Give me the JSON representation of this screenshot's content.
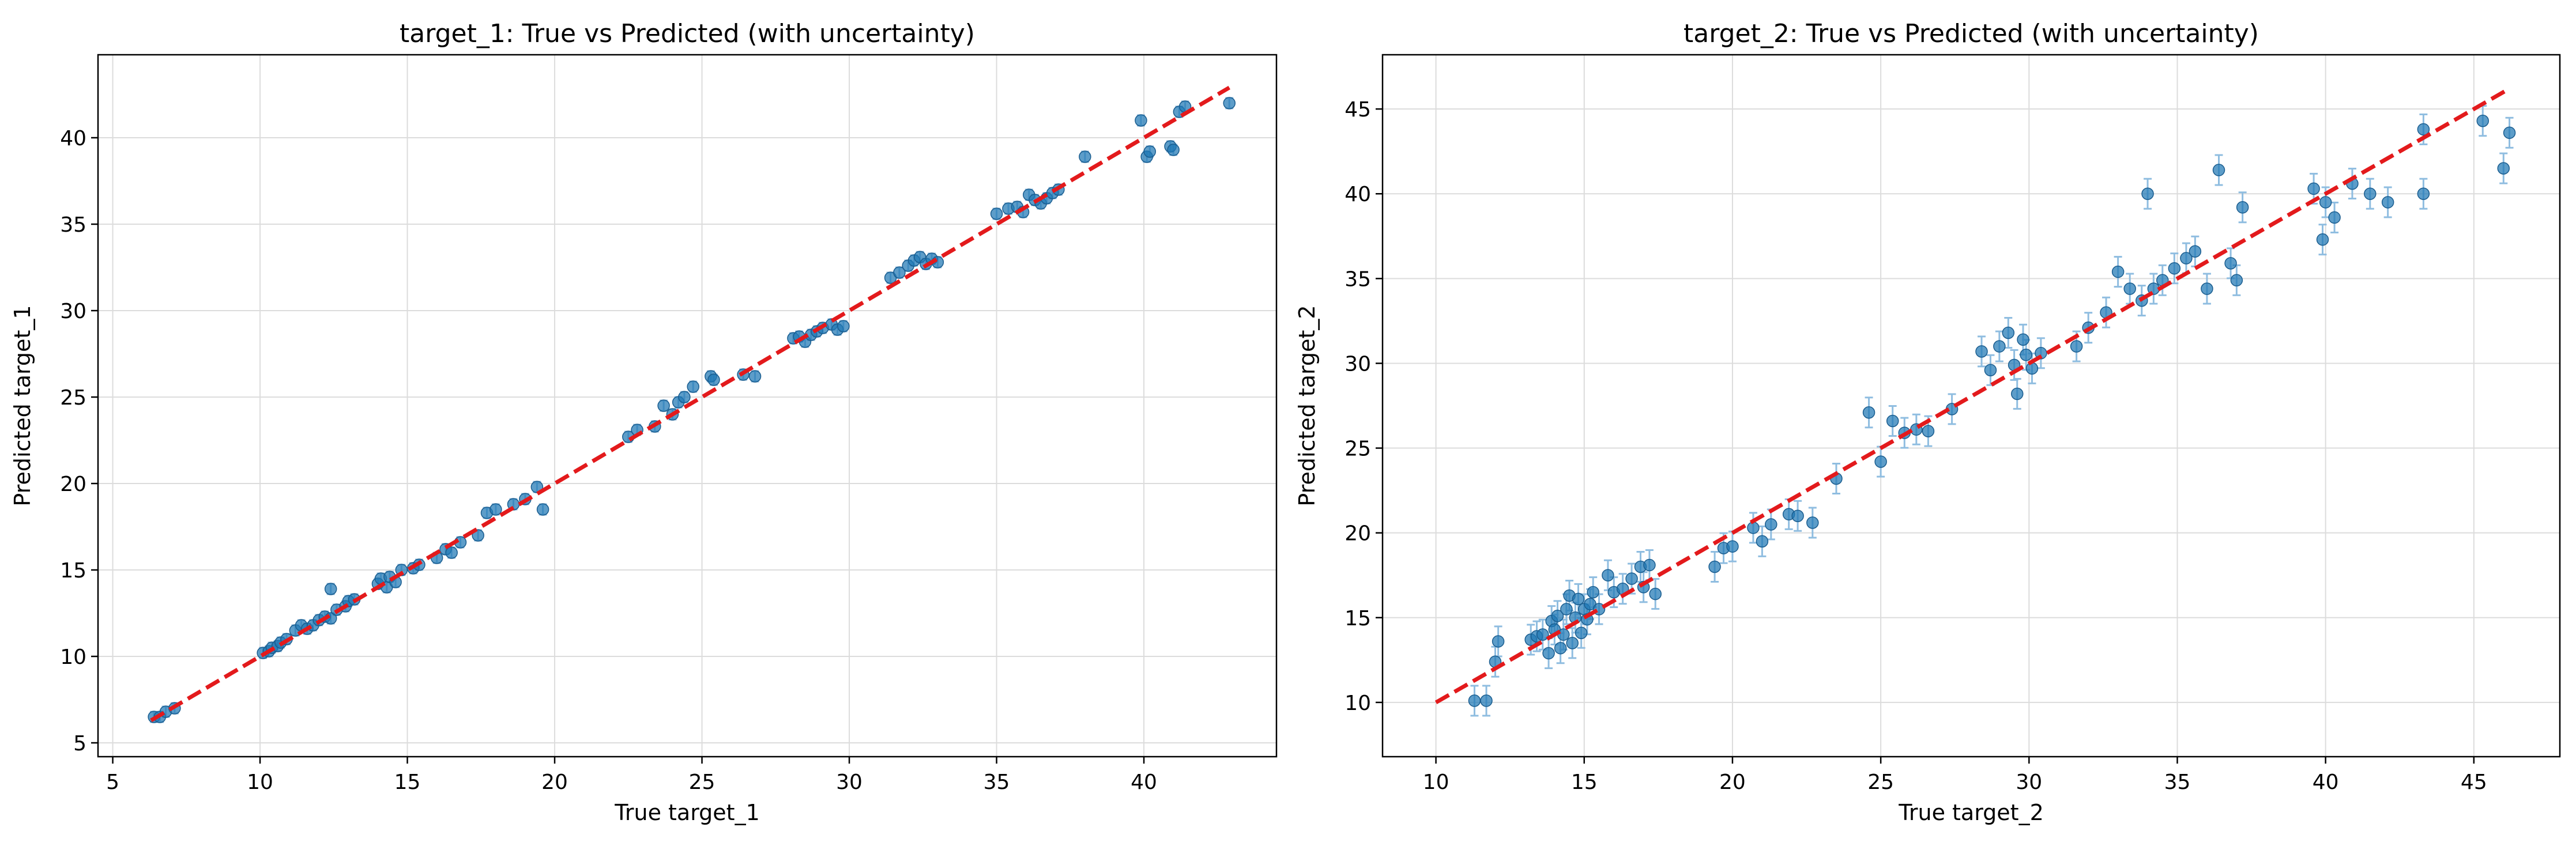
{
  "chart_data": [
    {
      "type": "scatter",
      "title": "target_1: True vs Predicted (with uncertainty)",
      "xlabel": "True target_1",
      "ylabel": "Predicted target_1",
      "xlim": [
        4.5,
        44.5
      ],
      "ylim": [
        4.2,
        44.8
      ],
      "xticks": [
        5,
        10,
        15,
        20,
        25,
        30,
        35,
        40
      ],
      "yticks": [
        5,
        10,
        15,
        20,
        25,
        30,
        35,
        40
      ],
      "grid": true,
      "reference_line": {
        "x": [
          6.3,
          42.9
        ],
        "y": [
          6.3,
          42.9
        ],
        "color": "#e31a1c",
        "style": "dashed"
      },
      "point_color": "#1f77b4",
      "series": [
        {
          "x": [
            6.4,
            6.6,
            6.8,
            7.1,
            10.1,
            10.3,
            10.4,
            10.6,
            10.7,
            10.9,
            11.2,
            11.4,
            11.6,
            11.8,
            12.0,
            12.2,
            12.4,
            12.4,
            12.6,
            12.9,
            13.0,
            13.2,
            14.0,
            14.1,
            14.3,
            14.4,
            14.6,
            14.8,
            15.2,
            15.4,
            16.0,
            16.3,
            16.5,
            16.8,
            17.4,
            17.7,
            18.0,
            18.6,
            19.0,
            19.4,
            19.6,
            22.5,
            22.8,
            23.4,
            23.7,
            24.0,
            24.2,
            24.4,
            24.7,
            25.3,
            25.4,
            26.4,
            26.8,
            28.1,
            28.3,
            28.5,
            28.7,
            28.9,
            29.1,
            29.4,
            29.6,
            29.8,
            31.4,
            31.7,
            32.0,
            32.2,
            32.4,
            32.6,
            32.8,
            33.0,
            35.0,
            35.4,
            35.7,
            35.9,
            36.1,
            36.3,
            36.5,
            36.7,
            36.9,
            37.1,
            38.0,
            39.9,
            40.1,
            40.2,
            40.9,
            41.0,
            41.2,
            41.4,
            42.9
          ],
          "y": [
            6.5,
            6.5,
            6.8,
            7.0,
            10.2,
            10.3,
            10.5,
            10.6,
            10.8,
            11.0,
            11.5,
            11.8,
            11.6,
            11.8,
            12.1,
            12.3,
            12.2,
            13.9,
            12.7,
            12.9,
            13.2,
            13.3,
            14.2,
            14.5,
            14.0,
            14.6,
            14.3,
            15.0,
            15.1,
            15.3,
            15.7,
            16.2,
            16.0,
            16.6,
            17.0,
            18.3,
            18.5,
            18.8,
            19.1,
            19.8,
            18.5,
            22.7,
            23.1,
            23.3,
            24.5,
            24.0,
            24.7,
            25.0,
            25.6,
            26.2,
            26.0,
            26.3,
            26.2,
            28.4,
            28.5,
            28.2,
            28.6,
            28.8,
            29.0,
            29.2,
            28.9,
            29.1,
            31.9,
            32.2,
            32.6,
            32.9,
            33.1,
            32.7,
            33.0,
            32.8,
            35.6,
            35.9,
            36.0,
            35.7,
            36.7,
            36.4,
            36.2,
            36.5,
            36.8,
            37.0,
            38.9,
            41.0,
            38.9,
            39.2,
            39.5,
            39.3,
            41.5,
            41.8,
            42.0
          ]
        }
      ]
    },
    {
      "type": "scatter",
      "title": "target_2: True vs Predicted (with uncertainty)",
      "xlabel": "True target_2",
      "ylabel": "Predicted target_2",
      "xlim": [
        8.2,
        47.9
      ],
      "ylim": [
        6.8,
        48.2
      ],
      "xticks": [
        10,
        15,
        20,
        25,
        30,
        35,
        40,
        45
      ],
      "yticks": [
        10,
        15,
        20,
        25,
        30,
        35,
        40,
        45
      ],
      "grid": true,
      "reference_line": {
        "x": [
          10.0,
          46.2
        ],
        "y": [
          10.0,
          46.2
        ],
        "color": "#e31a1c",
        "style": "dashed"
      },
      "point_color": "#1f77b4",
      "series": [
        {
          "x": [
            11.3,
            11.7,
            12.0,
            12.1,
            13.2,
            13.4,
            13.6,
            13.8,
            13.9,
            14.0,
            14.1,
            14.2,
            14.3,
            14.4,
            14.5,
            14.6,
            14.7,
            14.8,
            14.9,
            15.0,
            15.1,
            15.2,
            15.3,
            15.5,
            15.8,
            16.0,
            16.3,
            16.6,
            16.9,
            17.0,
            17.2,
            17.4,
            19.4,
            19.7,
            20.0,
            20.7,
            21.0,
            21.3,
            21.9,
            22.2,
            22.7,
            23.5,
            24.6,
            25.0,
            25.4,
            25.8,
            26.2,
            26.6,
            27.4,
            28.4,
            28.7,
            29.0,
            29.3,
            29.5,
            29.6,
            29.8,
            29.9,
            30.1,
            30.4,
            31.6,
            32.0,
            32.6,
            33.0,
            33.4,
            33.8,
            34.0,
            34.2,
            34.5,
            34.9,
            35.3,
            35.6,
            36.0,
            36.4,
            36.8,
            37.0,
            37.2,
            39.6,
            39.9,
            40.0,
            40.3,
            40.9,
            41.5,
            42.1,
            43.3,
            43.3,
            45.3,
            46.0,
            46.2
          ],
          "y": [
            10.1,
            10.1,
            12.4,
            13.6,
            13.7,
            13.9,
            14.0,
            12.9,
            14.8,
            14.3,
            15.1,
            13.2,
            14.0,
            15.5,
            16.3,
            13.5,
            15.0,
            16.1,
            14.1,
            15.5,
            14.9,
            15.8,
            16.5,
            15.5,
            17.5,
            16.5,
            16.7,
            17.3,
            18.0,
            16.8,
            18.1,
            16.4,
            18.0,
            19.1,
            19.2,
            20.3,
            19.5,
            20.5,
            21.1,
            21.0,
            20.6,
            23.2,
            27.1,
            24.2,
            26.6,
            25.9,
            26.1,
            26.0,
            27.3,
            30.7,
            29.6,
            31.0,
            31.8,
            29.9,
            28.2,
            31.4,
            30.5,
            29.7,
            30.6,
            31.0,
            32.1,
            33.0,
            35.4,
            34.4,
            33.7,
            40.0,
            34.4,
            34.9,
            35.6,
            36.2,
            36.6,
            34.4,
            41.4,
            35.9,
            34.9,
            39.2,
            40.3,
            37.3,
            39.5,
            38.6,
            40.6,
            40.0,
            39.5,
            40.0,
            43.8,
            44.3,
            41.5,
            43.6
          ]
        }
      ]
    }
  ]
}
